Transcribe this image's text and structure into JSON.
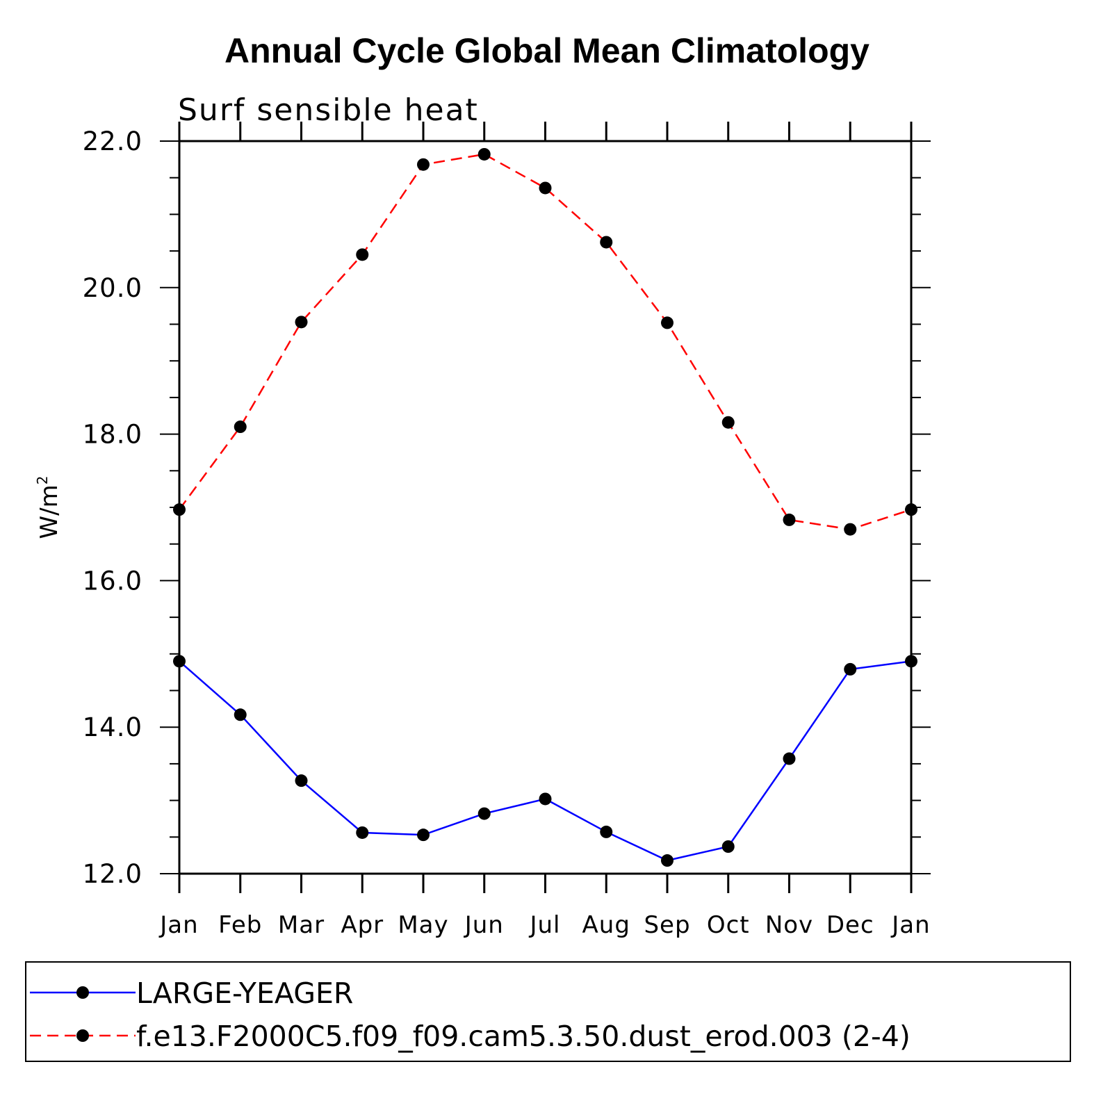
{
  "chart_data": {
    "type": "line",
    "title": "Annual Cycle Global Mean Climatology",
    "subtitle": "Surf sensible heat",
    "ylabel": "W/m",
    "ylabel_sup": "2",
    "xlabel": "",
    "ylim": [
      12.0,
      22.0
    ],
    "yticks": [
      "12.0",
      "14.0",
      "16.0",
      "18.0",
      "20.0",
      "22.0"
    ],
    "categories": [
      "Jan",
      "Feb",
      "Mar",
      "Apr",
      "May",
      "Jun",
      "Jul",
      "Aug",
      "Sep",
      "Oct",
      "Nov",
      "Dec",
      "Jan"
    ],
    "series": [
      {
        "name": "LARGE-YEAGER",
        "color": "#0000ff",
        "dash": "solid",
        "values": [
          14.9,
          14.17,
          13.27,
          12.56,
          12.53,
          12.82,
          13.02,
          12.57,
          12.18,
          12.37,
          13.57,
          14.79,
          14.9
        ]
      },
      {
        "name": "f.e13.F2000C5.f09_f09.cam5.3.50.dust_erod.003 (2-4)",
        "color": "#ff0000",
        "dash": "dashed",
        "values": [
          16.97,
          18.1,
          19.53,
          20.45,
          21.68,
          21.82,
          21.36,
          20.62,
          19.52,
          18.16,
          16.83,
          16.7,
          16.97
        ]
      }
    ],
    "legend_position": "bottom",
    "marker_color": "#000000"
  }
}
